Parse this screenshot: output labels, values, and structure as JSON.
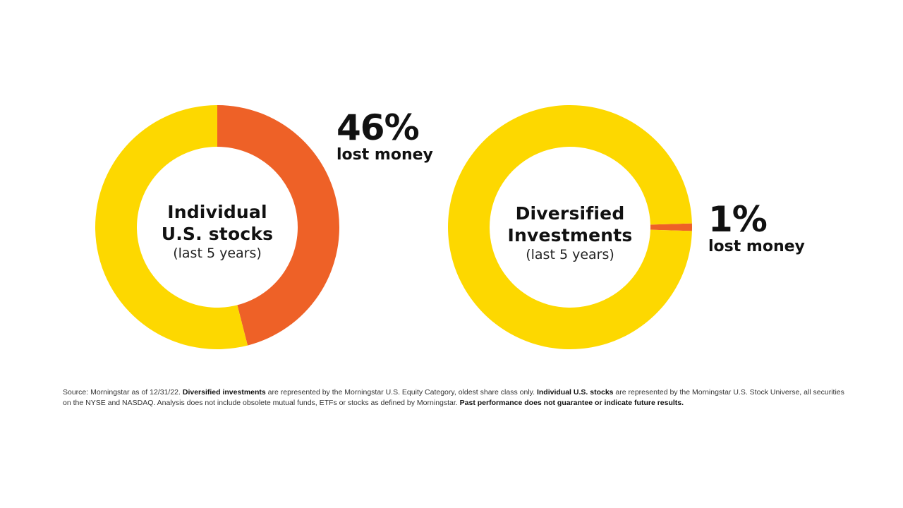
{
  "colors": {
    "lost": "#ee6127",
    "other": "#fdd800"
  },
  "chart_data": [
    {
      "type": "pie",
      "center_title_lines": [
        "Individual",
        "U.S. stocks"
      ],
      "center_subtitle": "(last 5 years)",
      "slices": [
        {
          "label": "lost money",
          "value": 46
        },
        {
          "label": "",
          "value": 54
        }
      ],
      "callout_value": "46%",
      "callout_text": "lost money"
    },
    {
      "type": "pie",
      "center_title_lines": [
        "Diversified",
        "Investments"
      ],
      "center_subtitle": "(last 5 years)",
      "slices": [
        {
          "label": "lost money",
          "value": 1
        },
        {
          "label": "",
          "value": 99
        }
      ],
      "callout_value": "1%",
      "callout_text": "lost money"
    }
  ],
  "footnote": {
    "part1": "Source: Morningstar as of 12/31/22. ",
    "bold1": "Diversified investments",
    "part2": " are represented by the Morningstar U.S. Equity Category, oldest share class only. ",
    "bold2": "Individual U.S. stocks",
    "part3": " are represented by the Morningstar U.S. Stock Universe, all securities on the NYSE and NASDAQ. Analysis does not include obsolete mutual funds, ETFs or stocks as defined by Morningstar. ",
    "bold3": "Past performance does not guarantee or indicate future results."
  }
}
